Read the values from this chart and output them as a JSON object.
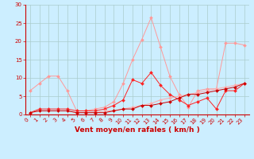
{
  "x": [
    0,
    1,
    2,
    3,
    4,
    5,
    6,
    7,
    8,
    9,
    10,
    11,
    12,
    13,
    14,
    15,
    16,
    17,
    18,
    19,
    20,
    21,
    22,
    23
  ],
  "line1_y": [
    6.5,
    8.5,
    10.5,
    10.5,
    6.5,
    1.0,
    1.0,
    1.5,
    2.0,
    3.5,
    8.5,
    15.0,
    20.5,
    26.5,
    18.5,
    10.5,
    5.5,
    2.0,
    6.5,
    7.0,
    7.0,
    19.5,
    19.5,
    19.0
  ],
  "line2_y": [
    0.5,
    1.5,
    1.5,
    1.5,
    1.5,
    1.0,
    1.0,
    1.0,
    1.5,
    2.5,
    4.0,
    9.5,
    8.5,
    11.5,
    8.0,
    5.5,
    4.0,
    2.5,
    3.5,
    4.5,
    1.5,
    6.5,
    6.5,
    8.5
  ],
  "line3_y": [
    0.5,
    1.0,
    1.0,
    1.0,
    1.0,
    0.5,
    0.5,
    0.5,
    1.0,
    1.0,
    1.5,
    2.0,
    2.5,
    3.0,
    4.0,
    4.5,
    5.0,
    5.5,
    6.0,
    6.5,
    7.0,
    7.5,
    8.0,
    8.5
  ],
  "line4_y": [
    0.5,
    1.0,
    1.0,
    1.0,
    1.0,
    0.5,
    0.5,
    0.5,
    0.5,
    1.0,
    1.5,
    1.5,
    2.5,
    2.5,
    3.0,
    3.5,
    4.5,
    5.5,
    5.5,
    6.0,
    6.5,
    7.0,
    7.5,
    8.5
  ],
  "bg_color": "#cceeff",
  "grid_color": "#aacccc",
  "line1_color": "#ff9999",
  "line2_color": "#ff2222",
  "line3_color": "#ffaaaa",
  "line4_color": "#cc0000",
  "marker": "D",
  "xlabel": "Vent moyen/en rafales ( km/h )",
  "ylim": [
    0,
    30
  ],
  "xlim": [
    -0.5,
    23.5
  ],
  "yticks": [
    0,
    5,
    10,
    15,
    20,
    25,
    30
  ],
  "xticks": [
    0,
    1,
    2,
    3,
    4,
    5,
    6,
    7,
    8,
    9,
    10,
    11,
    12,
    13,
    14,
    15,
    16,
    17,
    18,
    19,
    20,
    21,
    22,
    23
  ],
  "label_color": "#cc0000",
  "tick_color": "#cc0000",
  "axis_color": "#cc0000",
  "tick_fontsize": 5.0,
  "xlabel_fontsize": 6.5
}
